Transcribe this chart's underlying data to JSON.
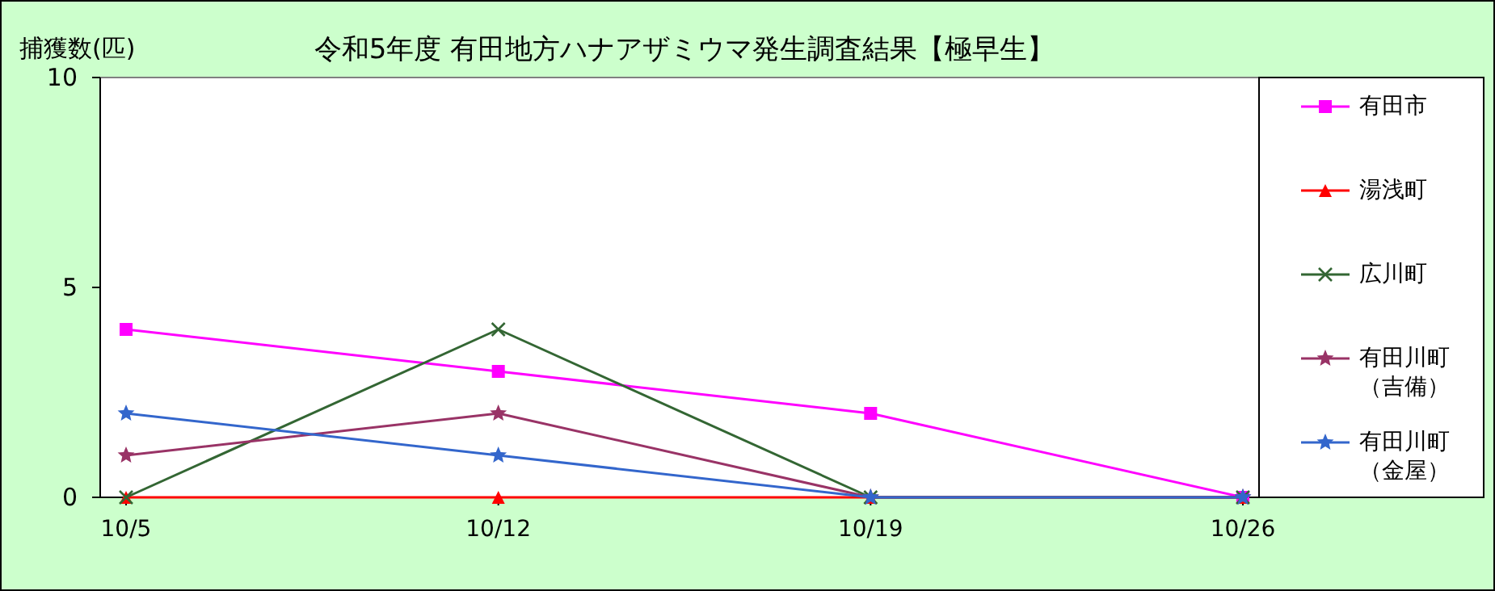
{
  "chart_data": {
    "type": "line",
    "title": "令和5年度 有田地方ハナアザミウマ発生調査結果【極早生】",
    "ylabel": "捕獲数(匹)",
    "categories": [
      "10/5",
      "10/12",
      "10/19",
      "10/26"
    ],
    "ylim": [
      0,
      10
    ],
    "yticks": [
      0,
      5,
      10
    ],
    "grid": false,
    "legend": "right",
    "series": [
      {
        "name": "有田市",
        "color": "#ff00ff",
        "marker": "square",
        "values": [
          4,
          3,
          2,
          0
        ]
      },
      {
        "name": "湯浅町",
        "color": "#ff0000",
        "marker": "triangle",
        "values": [
          0,
          0,
          0,
          0
        ]
      },
      {
        "name": "広川町",
        "color": "#336633",
        "marker": "cross",
        "values": [
          0,
          4,
          0,
          0
        ]
      },
      {
        "name": "有田川町（吉備）",
        "color": "#993366",
        "marker": "star",
        "values": [
          1,
          2,
          0,
          0
        ]
      },
      {
        "name": "有田川町（金屋）",
        "color": "#3366cc",
        "marker": "star",
        "values": [
          2,
          1,
          0,
          0
        ]
      }
    ]
  }
}
